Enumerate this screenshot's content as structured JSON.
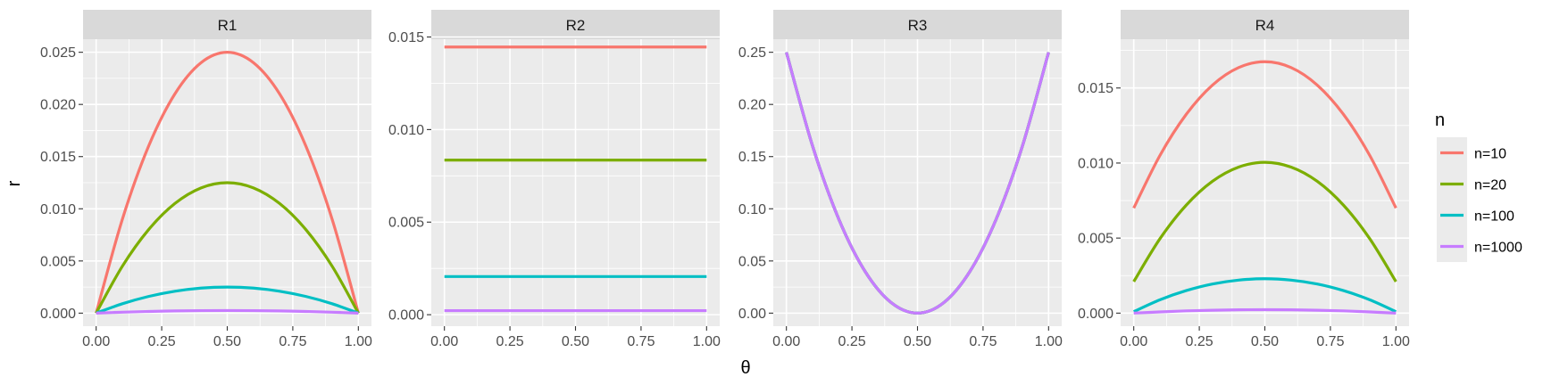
{
  "chart_data": {
    "type": "line",
    "facets": [
      {
        "title": "R1",
        "xlim": [
          -0.05,
          1.05
        ],
        "ylim": [
          -0.00125,
          0.02625
        ],
        "xticks": [
          "0.00",
          "0.25",
          "0.50",
          "0.75",
          "1.00"
        ],
        "yticks": [
          "0.000",
          "0.005",
          "0.010",
          "0.015",
          "0.020",
          "0.025"
        ],
        "series": [
          {
            "name": "n=10",
            "x": [
              0,
              0.1,
              0.2,
              0.3,
              0.4,
              0.5,
              0.6,
              0.7,
              0.8,
              0.9,
              1
            ],
            "y": [
              0,
              0.009,
              0.016,
              0.021,
              0.024,
              0.025,
              0.024,
              0.021,
              0.016,
              0.009,
              0
            ]
          },
          {
            "name": "n=20",
            "x": [
              0,
              0.1,
              0.2,
              0.3,
              0.4,
              0.5,
              0.6,
              0.7,
              0.8,
              0.9,
              1
            ],
            "y": [
              0,
              0.0045,
              0.008,
              0.0105,
              0.012,
              0.0125,
              0.012,
              0.0105,
              0.008,
              0.0045,
              0
            ]
          },
          {
            "name": "n=100",
            "x": [
              0,
              0.1,
              0.2,
              0.3,
              0.4,
              0.5,
              0.6,
              0.7,
              0.8,
              0.9,
              1
            ],
            "y": [
              0,
              0.0009,
              0.0016,
              0.0021,
              0.0024,
              0.0025,
              0.0024,
              0.0021,
              0.0016,
              0.0009,
              0
            ]
          },
          {
            "name": "n=1000",
            "x": [
              0,
              0.1,
              0.2,
              0.3,
              0.4,
              0.5,
              0.6,
              0.7,
              0.8,
              0.9,
              1
            ],
            "y": [
              0,
              9e-05,
              0.00016,
              0.00021,
              0.00024,
              0.00025,
              0.00024,
              0.00021,
              0.00016,
              9e-05,
              0
            ]
          }
        ]
      },
      {
        "title": "R2",
        "xlim": [
          -0.05,
          1.05
        ],
        "ylim": [
          -0.00062,
          0.01488
        ],
        "xticks": [
          "0.00",
          "0.25",
          "0.50",
          "0.75",
          "1.00"
        ],
        "yticks": [
          "0.000",
          "0.005",
          "0.010",
          "0.015"
        ],
        "series": [
          {
            "name": "n=10",
            "x": [
              0,
              1
            ],
            "y": [
              0.01446,
              0.01446
            ]
          },
          {
            "name": "n=20",
            "x": [
              0,
              1
            ],
            "y": [
              0.00835,
              0.00835
            ]
          },
          {
            "name": "n=100",
            "x": [
              0,
              1
            ],
            "y": [
              0.00206,
              0.00206
            ]
          },
          {
            "name": "n=1000",
            "x": [
              0,
              1
            ],
            "y": [
              0.00022,
              0.00022
            ]
          }
        ]
      },
      {
        "title": "R3",
        "xlim": [
          -0.05,
          1.05
        ],
        "ylim": [
          -0.0125,
          0.2625
        ],
        "xticks": [
          "0.00",
          "0.25",
          "0.50",
          "0.75",
          "1.00"
        ],
        "yticks": [
          "0.00",
          "0.05",
          "0.10",
          "0.15",
          "0.20",
          "0.25"
        ],
        "series": [
          {
            "name": "n=10",
            "x": [
              0,
              0.1,
              0.2,
              0.3,
              0.4,
              0.5,
              0.6,
              0.7,
              0.8,
              0.9,
              1
            ],
            "y": [
              0.25,
              0.16,
              0.09,
              0.04,
              0.01,
              0,
              0.01,
              0.04,
              0.09,
              0.16,
              0.25
            ]
          },
          {
            "name": "n=20",
            "x": [
              0,
              0.1,
              0.2,
              0.3,
              0.4,
              0.5,
              0.6,
              0.7,
              0.8,
              0.9,
              1
            ],
            "y": [
              0.25,
              0.16,
              0.09,
              0.04,
              0.01,
              0,
              0.01,
              0.04,
              0.09,
              0.16,
              0.25
            ]
          },
          {
            "name": "n=100",
            "x": [
              0,
              0.1,
              0.2,
              0.3,
              0.4,
              0.5,
              0.6,
              0.7,
              0.8,
              0.9,
              1
            ],
            "y": [
              0.25,
              0.16,
              0.09,
              0.04,
              0.01,
              0,
              0.01,
              0.04,
              0.09,
              0.16,
              0.25
            ]
          },
          {
            "name": "n=1000",
            "x": [
              0,
              0.1,
              0.2,
              0.3,
              0.4,
              0.5,
              0.6,
              0.7,
              0.8,
              0.9,
              1
            ],
            "y": [
              0.25,
              0.16,
              0.09,
              0.04,
              0.01,
              0,
              0.01,
              0.04,
              0.09,
              0.16,
              0.25
            ]
          }
        ]
      },
      {
        "title": "R4",
        "xlim": [
          -0.05,
          1.05
        ],
        "ylim": [
          -0.00087,
          0.01825
        ],
        "xticks": [
          "0.00",
          "0.25",
          "0.50",
          "0.75",
          "1.00"
        ],
        "yticks": [
          "0.000",
          "0.005",
          "0.010",
          "0.015"
        ],
        "series": [
          {
            "name": "n=10",
            "x": [
              0,
              0.1,
              0.2,
              0.3,
              0.4,
              0.5,
              0.6,
              0.7,
              0.8,
              0.9,
              1
            ],
            "y": [
              0.007,
              0.01051,
              0.01324,
              0.01519,
              0.01636,
              0.01675,
              0.01636,
              0.01519,
              0.01324,
              0.01051,
              0.007
            ]
          },
          {
            "name": "n=20",
            "x": [
              0,
              0.1,
              0.2,
              0.3,
              0.4,
              0.5,
              0.6,
              0.7,
              0.8,
              0.9,
              1
            ],
            "y": [
              0.0021,
              0.00496,
              0.00719,
              0.00878,
              0.00973,
              0.01005,
              0.00973,
              0.00878,
              0.00719,
              0.00496,
              0.0021
            ]
          },
          {
            "name": "n=100",
            "x": [
              0,
              0.1,
              0.2,
              0.3,
              0.4,
              0.5,
              0.6,
              0.7,
              0.8,
              0.9,
              1
            ],
            "y": [
              0.0001,
              0.00089,
              0.0015,
              0.00194,
              0.0022,
              0.00229,
              0.0022,
              0.00194,
              0.0015,
              0.00089,
              0.0001
            ]
          },
          {
            "name": "n=1000",
            "x": [
              0,
              0.1,
              0.2,
              0.3,
              0.4,
              0.5,
              0.6,
              0.7,
              0.8,
              0.9,
              1
            ],
            "y": [
              0,
              8e-05,
              0.00015,
              0.00019,
              0.00022,
              0.00023,
              0.00022,
              0.00019,
              0.00015,
              8e-05,
              0
            ]
          }
        ]
      }
    ],
    "xlabel": "θ",
    "ylabel": "r",
    "legend": {
      "title": "n",
      "placement": "right",
      "entries": [
        "n=10",
        "n=20",
        "n=100",
        "n=1000"
      ]
    },
    "colors": {
      "n=10": "#F8766D",
      "n=20": "#7CAE00",
      "n=100": "#00BFC4",
      "n=1000": "#C77CFF"
    },
    "grid": true
  }
}
